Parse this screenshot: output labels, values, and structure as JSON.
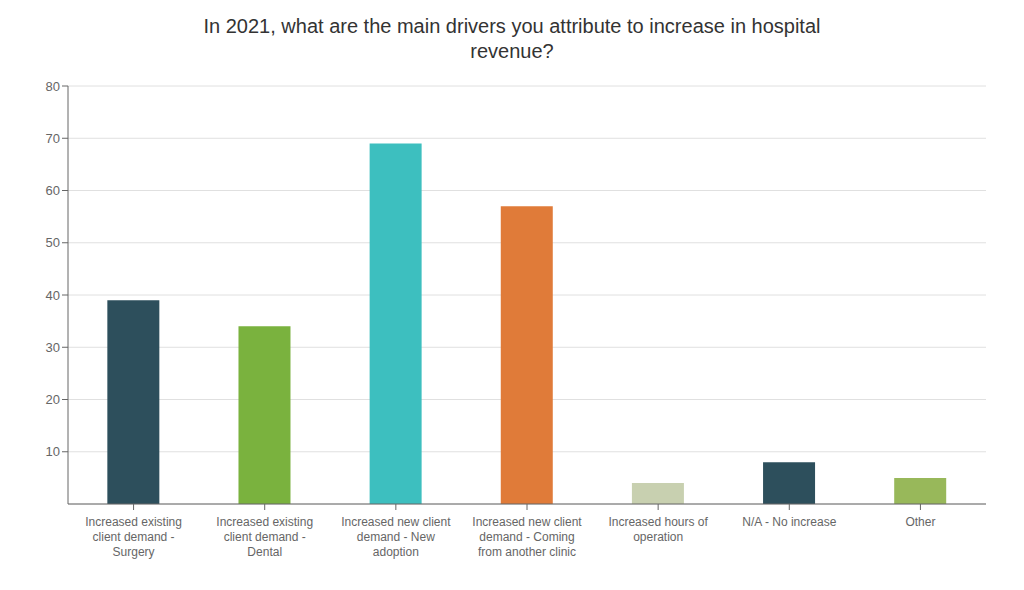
{
  "chart_data": {
    "type": "bar",
    "title": "In 2021, what are the main drivers you attribute to increase in hospital\nrevenue?",
    "categories": [
      "Increased existing\nclient demand -\nSurgery",
      "Increased existing\nclient demand -\nDental",
      "Increased new client\ndemand - New\nadoption",
      "Increased new client\ndemand - Coming\nfrom another clinic",
      "Increased hours of\noperation",
      "N/A - No increase",
      "Other"
    ],
    "values": [
      39,
      34,
      69,
      57,
      4,
      8,
      5
    ],
    "colors": [
      "#2d4f5c",
      "#7ab23e",
      "#3dbfbf",
      "#e07b39",
      "#c8d0b0",
      "#2d4f5c",
      "#98b85a"
    ],
    "ylim": [
      0,
      80
    ],
    "yticks": [
      10,
      20,
      30,
      40,
      50,
      60,
      70,
      80
    ],
    "grid": true
  }
}
